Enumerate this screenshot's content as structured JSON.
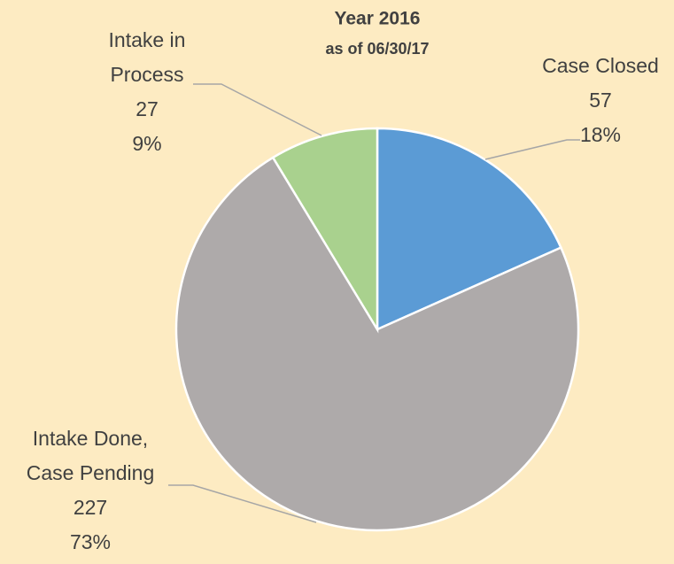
{
  "chart_data": {
    "type": "pie",
    "title": "Year 2016",
    "subtitle": "as of 06/30/17",
    "categories": [
      [
        "Case Closed"
      ],
      [
        "Intake Done,",
        "Case Pending"
      ],
      [
        "Intake in",
        "Process"
      ]
    ],
    "values": [
      57,
      227,
      27
    ],
    "percent_labels": [
      "18%",
      "73%",
      "9%"
    ],
    "colors": [
      "#5b9bd5",
      "#aeaaaa",
      "#a9d18e"
    ],
    "start_angle": 0,
    "direction": "clockwise"
  }
}
